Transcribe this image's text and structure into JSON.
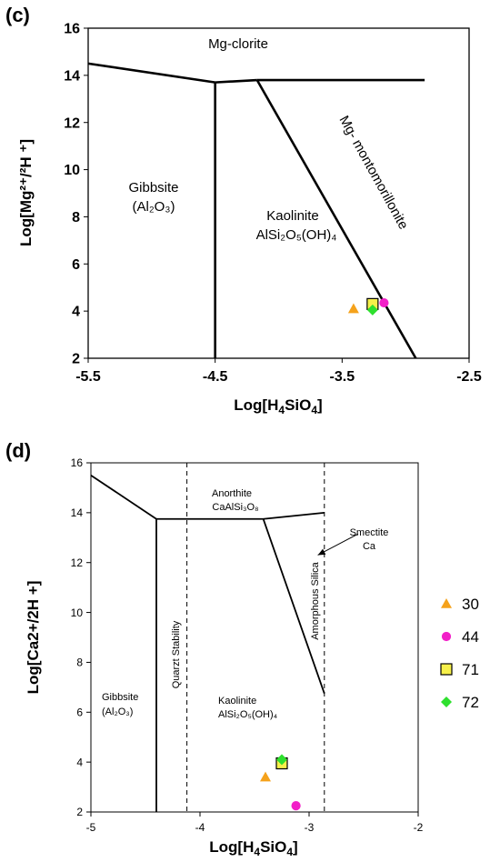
{
  "chart_data": [
    {
      "panel_label": "(c)",
      "type": "scatter",
      "xlabel_main": "Log[H",
      "xlabel_sub": "4",
      "xlabel_main2": "SiO",
      "xlabel_sub2": "4",
      "xlabel_end": "]",
      "ylabel": "Log[Mg²⁺/²H ⁺]",
      "xlim": [
        -5.5,
        -2.5
      ],
      "ylim": [
        2,
        16
      ],
      "x_ticks": [
        "-5.5",
        "-4.5",
        "-3.5",
        "-2.5"
      ],
      "x_tick_values": [
        -5.5,
        -4.5,
        -3.5,
        -2.5
      ],
      "y_ticks": [
        "2",
        "4",
        "6",
        "8",
        "10",
        "12",
        "14",
        "16"
      ],
      "y_tick_values": [
        2,
        4,
        6,
        8,
        10,
        12,
        14,
        16
      ],
      "field_labels": {
        "mg_clorite": "Mg-clorite",
        "gibbsite": "Gibbsite",
        "gibbsite_formula": "(Al₂O₃)",
        "kaolinite": "Kaolinite",
        "kaolinite_formula": "AlSi₂O₅(OH)₄",
        "mg_montmorillonite": "Mg- montomorillonite"
      },
      "boundaries": [
        {
          "x": [
            -5.5,
            -4.5
          ],
          "y": [
            14.5,
            13.7
          ]
        },
        {
          "x": [
            -4.5,
            -4.17
          ],
          "y": [
            13.7,
            13.8
          ]
        },
        {
          "x": [
            -4.17,
            -2.85
          ],
          "y": [
            13.8,
            13.8
          ]
        },
        {
          "x": [
            -4.5,
            -4.5
          ],
          "y": [
            13.7,
            2
          ]
        },
        {
          "x": [
            -4.17,
            -2.92
          ],
          "y": [
            13.8,
            2
          ]
        }
      ],
      "points": [
        {
          "sample": "30",
          "x": -3.41,
          "y": 4.1
        },
        {
          "sample": "44",
          "x": -3.17,
          "y": 4.35
        },
        {
          "sample": "71",
          "x": -3.26,
          "y": 4.3
        },
        {
          "sample": "72",
          "x": -3.26,
          "y": 4.05
        }
      ]
    },
    {
      "panel_label": "(d)",
      "type": "scatter",
      "xlabel_main": "Log[H",
      "xlabel_sub": "4",
      "xlabel_main2": "SiO",
      "xlabel_sub2": "4",
      "xlabel_end": "]",
      "ylabel": "Log[Ca2+/2H +]",
      "xlim": [
        -5,
        -2
      ],
      "ylim": [
        2,
        16
      ],
      "x_ticks": [
        "-5",
        "-4",
        "-3",
        "-2"
      ],
      "x_tick_values": [
        -5,
        -4,
        -3,
        -2
      ],
      "y_ticks": [
        "2",
        "4",
        "6",
        "8",
        "10",
        "12",
        "14",
        "16"
      ],
      "y_tick_values": [
        2,
        4,
        6,
        8,
        10,
        12,
        14,
        16
      ],
      "field_labels": {
        "anorthite": "Anorthite",
        "anorthite_formula": "CaAlSi₃O₈",
        "smectite": "Smectite",
        "smectite_ca": "Ca",
        "gibbsite": "Gibbsite",
        "gibbsite_formula": "(Al₂O₃)",
        "kaolinite": "Kaolinite",
        "kaolinite_formula": "AlSi₂O₅(OH)₄",
        "quartz": "Quarzt Stability",
        "amorphous": "Amorphous Silica"
      },
      "boundaries": [
        {
          "x": [
            -5,
            -4.4
          ],
          "y": [
            15.5,
            13.75
          ]
        },
        {
          "x": [
            -4.4,
            -3.42
          ],
          "y": [
            13.75,
            13.75
          ]
        },
        {
          "x": [
            -3.42,
            -2.86
          ],
          "y": [
            13.75,
            14.0
          ]
        },
        {
          "x": [
            -4.4,
            -4.4
          ],
          "y": [
            13.75,
            2
          ]
        },
        {
          "x": [
            -3.42,
            -2.86
          ],
          "y": [
            13.75,
            6.75
          ]
        }
      ],
      "dashed_lines": [
        {
          "x": [
            -4.12,
            -4.12
          ],
          "y": [
            16,
            2
          ]
        },
        {
          "x": [
            -2.86,
            -2.86
          ],
          "y": [
            16,
            2
          ]
        }
      ],
      "arrow": {
        "x": [
          -2.55,
          -2.92
        ],
        "y": [
          13.15,
          12.3
        ]
      },
      "points": [
        {
          "sample": "30",
          "x": -3.4,
          "y": 3.4
        },
        {
          "sample": "44",
          "x": -3.12,
          "y": 2.25
        },
        {
          "sample": "71",
          "x": -3.25,
          "y": 3.95
        },
        {
          "sample": "72",
          "x": -3.25,
          "y": 4.1
        }
      ]
    }
  ],
  "legend": [
    {
      "label": "30",
      "shape": "triangle",
      "color": "#F5A21B"
    },
    {
      "label": "44",
      "shape": "circle",
      "color": "#F21FC8"
    },
    {
      "label": "71",
      "shape": "square",
      "color": "#F6F04A"
    },
    {
      "label": "72",
      "shape": "diamond",
      "color": "#2EE02E"
    }
  ],
  "colors": {
    "line": "#000000",
    "triangle": "#F5A21B",
    "circle": "#F21FC8",
    "square": "#F6F04A",
    "diamond": "#2EE02E"
  }
}
